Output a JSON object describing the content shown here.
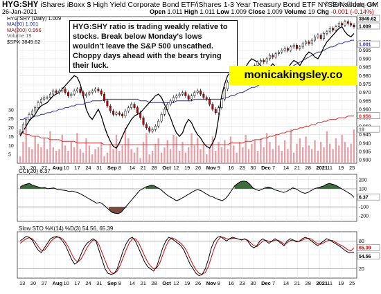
{
  "header": {
    "ticker": "HYG:SHY",
    "description": "iShares iBoxx $ High Yield Corporate Bond ETF/iShares 1-3 Year Treasury Bond ETF",
    "exchange": "NYSE/Nasdaq GM",
    "copyright": "© StockCharts.com",
    "date": "26-Jan-2021",
    "open_label": "Open",
    "open": "1.011",
    "high_label": "High",
    "high": "1.011",
    "low_label": "Low",
    "low": "1.009",
    "close_label": "Close",
    "close": "1.009",
    "volume_label": "Volume",
    "volume": "19",
    "chg_label": "Chg",
    "chg": "-0.001 (-0.14%)",
    "chg_color": "#c00000"
  },
  "legend": {
    "main": "HYG:SHY (Daily) 1.009",
    "ma50": "MA(50) 1.001",
    "ma200": "MA(200) 0.956",
    "volume": "Volume 19",
    "spx": "$SPX 3849.62"
  },
  "annotation": "HYG:SHY ratio is trading weakly relative to stocks. Break below Monday's lows wouldn't leave the S&P 500 unscathed. Choppy days ahead with the bears trying their luck.",
  "brand_text": "monicakingsley.co",
  "colors": {
    "up": "#ffffff",
    "down": "#d00000",
    "ma50": "#2a2aa0",
    "ma200": "#d03030",
    "spx": "#000000",
    "volume": "#e8a0a8",
    "cci_fill": "#3d6b3d",
    "cci_neg_fill": "#7a4a40",
    "sto_k": "#000000",
    "sto_d": "#d00000",
    "brand_bg": "#ffff00"
  },
  "chart_data": [
    {
      "type": "candlestick",
      "title": "HYG:SHY (Daily)",
      "x_ticks": [
        "13",
        "20",
        "27",
        "Aug",
        "10",
        "17",
        "24",
        "31",
        "Sep",
        "8",
        "14",
        "21",
        "28",
        "Oct",
        "12",
        "19",
        "26",
        "Nov",
        "9",
        "16",
        "23",
        "30",
        "Dec",
        "7",
        "14",
        "21",
        "28",
        "2021",
        "11",
        "19",
        "25"
      ],
      "y_ticks": [
        "1.000",
        "0.995",
        "0.990",
        "0.985",
        "0.980",
        "0.975",
        "0.970",
        "0.965",
        "0.960",
        "0.955",
        "0.950",
        "0.945",
        "0.940",
        "0.935",
        "0.930"
      ],
      "ylim": [
        0.928,
        1.015
      ],
      "volume_y_ticks": [
        "30",
        "25",
        "20",
        "15",
        "10",
        "5"
      ],
      "right_labels": {
        "spx": "3849.62",
        "main": "1.009",
        "ma50": "1.001",
        "ma200": "0.956",
        "volume": "19"
      },
      "close": [
        0.947,
        0.951,
        0.954,
        0.957,
        0.959,
        0.961,
        0.964,
        0.966,
        0.967,
        0.967,
        0.969,
        0.971,
        0.97,
        0.971,
        0.972,
        0.97,
        0.968,
        0.969,
        0.971,
        0.972,
        0.97,
        0.968,
        0.969,
        0.97,
        0.971,
        0.972,
        0.971,
        0.969,
        0.965,
        0.962,
        0.959,
        0.957,
        0.958,
        0.957,
        0.956,
        0.959,
        0.961,
        0.963,
        0.961,
        0.958,
        0.955,
        0.951,
        0.949,
        0.947,
        0.948,
        0.95,
        0.953,
        0.957,
        0.96,
        0.963,
        0.965,
        0.967,
        0.968,
        0.969,
        0.97,
        0.968,
        0.966,
        0.968,
        0.97,
        0.971,
        0.969,
        0.967,
        0.966,
        0.963,
        0.96,
        0.958,
        0.961,
        0.966,
        0.972,
        0.976,
        0.978,
        0.98,
        0.982,
        0.981,
        0.983,
        0.984,
        0.982,
        0.984,
        0.986,
        0.988,
        0.989,
        0.988,
        0.99,
        0.992,
        0.991,
        0.993,
        0.994,
        0.995,
        0.996,
        0.995,
        0.997,
        0.998,
        0.996,
        0.997,
        0.999,
        1.0,
        0.999,
        1.001,
        1.003,
        1.004,
        1.002,
        1.005,
        1.006,
        1.008,
        1.007,
        1.009,
        1.011,
        1.01,
        1.012,
        1.011,
        1.01,
        1.009
      ],
      "ma50": [
        0.954,
        0.954,
        0.955,
        0.955,
        0.955,
        0.956,
        0.956,
        0.957,
        0.957,
        0.958,
        0.958,
        0.959,
        0.959,
        0.96,
        0.96,
        0.961,
        0.961,
        0.962,
        0.962,
        0.963,
        0.963,
        0.963,
        0.964,
        0.964,
        0.965,
        0.965,
        0.965,
        0.965,
        0.966,
        0.966,
        0.966,
        0.966,
        0.966,
        0.966,
        0.966,
        0.966,
        0.966,
        0.966,
        0.966,
        0.966,
        0.965,
        0.965,
        0.965,
        0.964,
        0.964,
        0.964,
        0.964,
        0.964,
        0.964,
        0.964,
        0.964,
        0.964,
        0.965,
        0.965,
        0.965,
        0.965,
        0.965,
        0.965,
        0.966,
        0.966,
        0.966,
        0.966,
        0.966,
        0.966,
        0.966,
        0.966,
        0.966,
        0.966,
        0.967,
        0.967,
        0.968,
        0.968,
        0.969,
        0.97,
        0.97,
        0.971,
        0.972,
        0.973,
        0.973,
        0.974,
        0.975,
        0.976,
        0.977,
        0.978,
        0.979,
        0.98,
        0.981,
        0.982,
        0.983,
        0.984,
        0.985,
        0.986,
        0.987,
        0.988,
        0.989,
        0.99,
        0.991,
        0.992,
        0.993,
        0.994,
        0.994,
        0.995,
        0.996,
        0.997,
        0.997,
        0.998,
        0.999,
        0.999,
        1.0,
        1.0,
        1.001,
        1.001
      ],
      "ma200": [
        0.946,
        0.946,
        0.945,
        0.945,
        0.944,
        0.944,
        0.944,
        0.943,
        0.943,
        0.943,
        0.942,
        0.942,
        0.942,
        0.942,
        0.941,
        0.941,
        0.941,
        0.941,
        0.941,
        0.94,
        0.94,
        0.94,
        0.94,
        0.94,
        0.94,
        0.94,
        0.94,
        0.94,
        0.939,
        0.939,
        0.939,
        0.939,
        0.939,
        0.939,
        0.939,
        0.939,
        0.939,
        0.939,
        0.939,
        0.939,
        0.939,
        0.939,
        0.939,
        0.939,
        0.939,
        0.939,
        0.939,
        0.939,
        0.939,
        0.939,
        0.939,
        0.939,
        0.939,
        0.939,
        0.939,
        0.939,
        0.939,
        0.939,
        0.939,
        0.939,
        0.939,
        0.939,
        0.939,
        0.939,
        0.939,
        0.939,
        0.939,
        0.939,
        0.939,
        0.939,
        0.94,
        0.94,
        0.94,
        0.94,
        0.94,
        0.941,
        0.941,
        0.941,
        0.942,
        0.942,
        0.942,
        0.943,
        0.943,
        0.944,
        0.944,
        0.945,
        0.945,
        0.946,
        0.946,
        0.947,
        0.947,
        0.948,
        0.948,
        0.949,
        0.949,
        0.95,
        0.95,
        0.951,
        0.951,
        0.952,
        0.952,
        0.953,
        0.953,
        0.954,
        0.954,
        0.954,
        0.955,
        0.955,
        0.955,
        0.956,
        0.956,
        0.956
      ],
      "spx": [
        0.944,
        0.947,
        0.95,
        0.953,
        0.955,
        0.957,
        0.96,
        0.962,
        0.963,
        0.964,
        0.966,
        0.968,
        0.969,
        0.97,
        0.972,
        0.974,
        0.976,
        0.978,
        0.98,
        0.979,
        0.975,
        0.968,
        0.96,
        0.956,
        0.954,
        0.957,
        0.96,
        0.956,
        0.95,
        0.945,
        0.941,
        0.938,
        0.937,
        0.94,
        0.944,
        0.948,
        0.951,
        0.954,
        0.956,
        0.957,
        0.958,
        0.96,
        0.962,
        0.964,
        0.966,
        0.968,
        0.969,
        0.967,
        0.963,
        0.959,
        0.955,
        0.95,
        0.946,
        0.944,
        0.946,
        0.951,
        0.954,
        0.952,
        0.948,
        0.945,
        0.943,
        0.94,
        0.938,
        0.937,
        0.94,
        0.944,
        0.955,
        0.968,
        0.975,
        0.98,
        0.982,
        0.984,
        0.983,
        0.98,
        0.982,
        0.985,
        0.988,
        0.99,
        0.989,
        0.988,
        0.986,
        0.984,
        0.983,
        0.985,
        0.987,
        0.985,
        0.982,
        0.979,
        0.981,
        0.984,
        0.987,
        0.989,
        0.988,
        0.986,
        0.989,
        0.992,
        0.994,
        0.993,
        0.991,
        0.99,
        0.993,
        0.997,
        1.0,
        1.002,
        1.004,
        1.006,
        1.008,
        1.009,
        1.006,
        1.004,
        1.003,
        1.005
      ],
      "volume": [
        4,
        12,
        22,
        9,
        8,
        15,
        11,
        9,
        14,
        8,
        18,
        9,
        7,
        8,
        16,
        10,
        7,
        12,
        9,
        17,
        8,
        6,
        14,
        10,
        5,
        8,
        9,
        12,
        4,
        6,
        11,
        8,
        16,
        7,
        10,
        20,
        14,
        8,
        6,
        9,
        3,
        12,
        17,
        5,
        7,
        11,
        14,
        6,
        9,
        13,
        8,
        16,
        15,
        7,
        12,
        6,
        9,
        17,
        10,
        14,
        8,
        11,
        5,
        9,
        15,
        7,
        12,
        9,
        13,
        8,
        15,
        10,
        6,
        12,
        9,
        16,
        8,
        11,
        13,
        7,
        14,
        9,
        17,
        12,
        8,
        16,
        10,
        7,
        13,
        8,
        19,
        6,
        11,
        14,
        9,
        15,
        10,
        8,
        13,
        7,
        12,
        9,
        18,
        11,
        8,
        14,
        10,
        16,
        12,
        9,
        11,
        19
      ]
    },
    {
      "type": "line",
      "title": "CCI(20) 6.37",
      "y_ticks": [
        "200",
        "100",
        "0",
        "-100",
        "-200"
      ],
      "ylim": [
        -260,
        260
      ],
      "right_label": "6.37",
      "values": [
        120,
        140,
        150,
        160,
        140,
        130,
        120,
        110,
        115,
        100,
        105,
        110,
        95,
        90,
        85,
        80,
        70,
        75,
        65,
        55,
        40,
        20,
        0,
        -20,
        -40,
        -60,
        -50,
        -70,
        -100,
        -130,
        -160,
        -170,
        -175,
        -160,
        -120,
        -80,
        -40,
        0,
        40,
        80,
        100,
        120,
        130,
        140,
        130,
        110,
        90,
        60,
        30,
        10,
        -10,
        -30,
        -20,
        0,
        20,
        40,
        60,
        80,
        90,
        80,
        60,
        40,
        20,
        10,
        -10,
        -20,
        -30,
        -10,
        30,
        80,
        130,
        160,
        180,
        185,
        180,
        150,
        110,
        90,
        80,
        95,
        110,
        120,
        110,
        90,
        80,
        70,
        60,
        70,
        90,
        110,
        100,
        80,
        60,
        50,
        60,
        80,
        100,
        110,
        120,
        130,
        150,
        160,
        150,
        140,
        120,
        100,
        80,
        60,
        40,
        6.37
      ]
    },
    {
      "type": "line",
      "title": "Slow STO %K(14) %D(3) 54.56, 65.39",
      "y_ticks": [
        "80",
        "50",
        "20"
      ],
      "ylim": [
        0,
        100
      ],
      "right_labels": {
        "d": "65.39",
        "k": "54.56"
      },
      "series": [
        {
          "name": "%K(14)",
          "values": [
            80,
            85,
            90,
            88,
            82,
            70,
            60,
            55,
            65,
            75,
            85,
            88,
            90,
            87,
            80,
            70,
            55,
            40,
            30,
            35,
            50,
            65,
            75,
            80,
            85,
            80,
            60,
            40,
            20,
            10,
            8,
            10,
            20,
            40,
            60,
            75,
            85,
            88,
            80,
            65,
            50,
            35,
            25,
            20,
            15,
            25,
            45,
            65,
            80,
            88,
            85,
            80,
            75,
            70,
            60,
            45,
            30,
            20,
            10,
            5,
            8,
            20,
            40,
            65,
            80,
            88,
            90,
            85,
            80,
            85,
            88,
            86,
            84,
            82,
            85,
            80,
            70,
            65,
            70,
            80,
            85,
            80,
            75,
            80,
            85,
            80,
            75,
            70,
            80,
            85,
            82,
            78,
            80,
            85,
            88,
            85,
            80,
            75,
            70,
            75,
            80,
            85,
            82,
            78,
            74,
            70,
            65,
            60,
            56,
            55,
            54.56
          ]
        },
        {
          "name": "%D(3)",
          "values": [
            75,
            80,
            85,
            87,
            85,
            78,
            68,
            60,
            60,
            68,
            78,
            85,
            88,
            88,
            85,
            77,
            66,
            52,
            40,
            35,
            40,
            52,
            65,
            75,
            82,
            82,
            72,
            55,
            38,
            22,
            12,
            10,
            15,
            28,
            45,
            62,
            76,
            85,
            85,
            77,
            63,
            48,
            35,
            26,
            20,
            22,
            32,
            50,
            68,
            81,
            87,
            84,
            80,
            75,
            68,
            57,
            42,
            28,
            18,
            10,
            8,
            12,
            25,
            45,
            65,
            80,
            88,
            88,
            85,
            84,
            86,
            86,
            84,
            83,
            84,
            82,
            76,
            70,
            68,
            74,
            80,
            82,
            79,
            79,
            82,
            82,
            78,
            73,
            76,
            81,
            82,
            80,
            79,
            82,
            85,
            86,
            84,
            79,
            74,
            73,
            76,
            80,
            82,
            81,
            77,
            73,
            70,
            66,
            61,
            59,
            65.39
          ]
        }
      ],
      "x_ticks": [
        "13",
        "20",
        "27",
        "Aug",
        "10",
        "17",
        "24",
        "31",
        "Sep",
        "8",
        "14",
        "21",
        "28",
        "Oct",
        "12",
        "19",
        "26",
        "Nov",
        "9",
        "16",
        "23",
        "30",
        "Dec",
        "7",
        "14",
        "21",
        "28",
        "2021",
        "11",
        "19",
        "25"
      ]
    }
  ]
}
